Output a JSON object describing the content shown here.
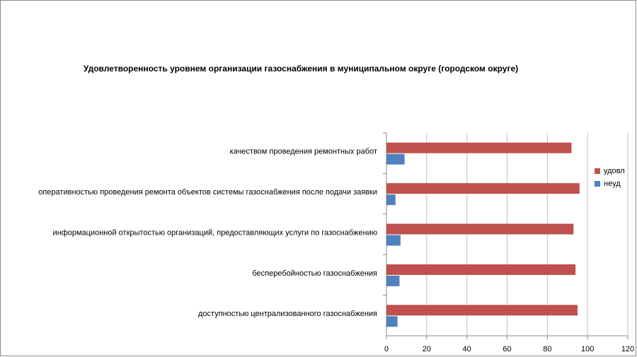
{
  "chart_data": {
    "type": "hbar",
    "title": "Удовлетворенность уровнем организации газоснабжения в муниципальном округе (городском округе)",
    "categories": [
      "качеством проведения ремонтных работ",
      "оперативностью проведения ремонта объектов системы газоснабжения после подачи заявки",
      "информационной открытостью организаций, предоставляющих услуги по газоснабжению",
      "бесперебойностью газоснабжения",
      "доступностью централизованного газоснабжения"
    ],
    "series": [
      {
        "name": "удовл",
        "color": "#c0504d",
        "values": [
          92,
          96,
          93,
          94,
          95
        ]
      },
      {
        "name": "неуд",
        "color": "#4f81bd",
        "values": [
          9,
          4.5,
          7,
          6.5,
          5.5
        ]
      }
    ],
    "xlim": [
      0,
      120
    ],
    "xticks": [
      0,
      20,
      40,
      60,
      80,
      100,
      120
    ],
    "grid": true,
    "legend": "right"
  }
}
